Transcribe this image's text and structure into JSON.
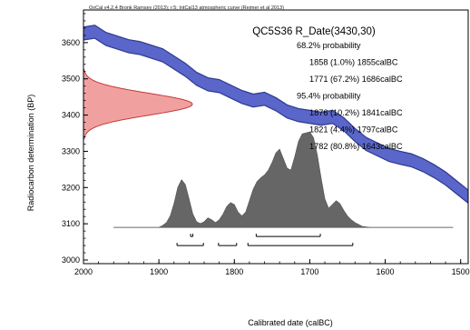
{
  "chart_data": {
    "type": "area",
    "header": "OxCal v4.2.4 Bronk Ramsey (2013); r:5; IntCal13 atmospheric curve (Reimer et al 2013)",
    "title": "QC5S36 R_Date(3430,30)",
    "xlabel": "Calibrated date (calBC)",
    "ylabel": "Radiocarbon determination (BP)",
    "xlim": [
      2000,
      1490
    ],
    "ylim": [
      2990,
      3690
    ],
    "x_ticks": [
      2000,
      1900,
      1800,
      1700,
      1600,
      1500
    ],
    "y_ticks": [
      3000,
      3100,
      3200,
      3300,
      3400,
      3500,
      3600
    ],
    "ranges_text": [
      "68.2% probability",
      "1858 (1.0%) 1855calBC",
      "1771 (67.2%) 1686calBC",
      "95.4% probability",
      "1876 (10.2%) 1841calBC",
      "1821 (4.4%) 1797calBC",
      "1782 (80.8%) 1643calBC"
    ],
    "calibration_curve": {
      "x": [
        2000,
        1985,
        1970,
        1955,
        1940,
        1925,
        1910,
        1895,
        1880,
        1865,
        1850,
        1835,
        1820,
        1805,
        1790,
        1775,
        1760,
        1745,
        1730,
        1715,
        1700,
        1685,
        1670,
        1655,
        1640,
        1625,
        1610,
        1595,
        1580,
        1565,
        1550,
        1535,
        1520,
        1505,
        1490
      ],
      "y": [
        3625,
        3630,
        3610,
        3600,
        3590,
        3585,
        3575,
        3565,
        3545,
        3525,
        3500,
        3485,
        3480,
        3465,
        3450,
        3440,
        3445,
        3430,
        3410,
        3400,
        3395,
        3390,
        3395,
        3375,
        3345,
        3320,
        3305,
        3290,
        3282,
        3275,
        3262,
        3245,
        3225,
        3200,
        3175
      ],
      "band": 18
    },
    "radiocarbon_distribution": {
      "mean": 3430,
      "sigma": 30
    },
    "posterior_distribution": {
      "x": [
        1960,
        1900,
        1895,
        1890,
        1885,
        1880,
        1875,
        1870,
        1865,
        1860,
        1855,
        1850,
        1845,
        1840,
        1835,
        1830,
        1825,
        1820,
        1815,
        1810,
        1805,
        1800,
        1795,
        1790,
        1785,
        1780,
        1775,
        1770,
        1765,
        1760,
        1755,
        1750,
        1745,
        1740,
        1735,
        1730,
        1725,
        1720,
        1715,
        1710,
        1705,
        1700,
        1695,
        1690,
        1685,
        1680,
        1675,
        1670,
        1665,
        1660,
        1655,
        1650,
        1645,
        1640,
        1635,
        1630,
        1620,
        1510
      ],
      "y": [
        0,
        0,
        0.02,
        0.05,
        0.12,
        0.25,
        0.42,
        0.5,
        0.45,
        0.3,
        0.14,
        0.06,
        0.04,
        0.06,
        0.1,
        0.08,
        0.05,
        0.08,
        0.14,
        0.22,
        0.26,
        0.24,
        0.16,
        0.12,
        0.16,
        0.28,
        0.4,
        0.48,
        0.52,
        0.55,
        0.6,
        0.68,
        0.78,
        0.82,
        0.72,
        0.62,
        0.6,
        0.74,
        0.9,
        0.98,
        0.99,
        1.0,
        0.94,
        0.76,
        0.52,
        0.3,
        0.2,
        0.24,
        0.28,
        0.25,
        0.18,
        0.12,
        0.08,
        0.05,
        0.03,
        0.01,
        0,
        0
      ]
    },
    "range_bars_68": [
      [
        1858,
        1855
      ],
      [
        1771,
        1686
      ]
    ],
    "range_bars_95": [
      [
        1876,
        1841
      ],
      [
        1821,
        1797
      ],
      [
        1782,
        1643
      ]
    ],
    "colors": {
      "curve_fill": "#5a66c9",
      "curve_edge": "#2e3a8f",
      "rc_fill": "#ef8f8f",
      "rc_edge": "#c43a3a",
      "posterior_fill": "#666666",
      "baseline": "#999999",
      "axis": "#000000"
    },
    "grid": false
  }
}
